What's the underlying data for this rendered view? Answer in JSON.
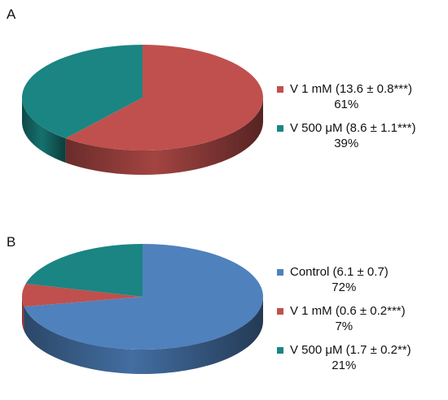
{
  "colors": {
    "control": "#4f81bd",
    "v1mm": "#c0504d",
    "v500": "#1a8583"
  },
  "chart_data": [
    {
      "type": "pie",
      "panel": "A",
      "slices": [
        {
          "label": "V 1 mM (13.6 ± 0.8***)",
          "value": 61,
          "pct_label": "61%",
          "color": "#c0504d"
        },
        {
          "label": "V 500 μM (8.6 ± 1.1***)",
          "value": 39,
          "pct_label": "39%",
          "color": "#1a8583"
        }
      ],
      "style": "3d",
      "legend_position": "right"
    },
    {
      "type": "pie",
      "panel": "B",
      "slices": [
        {
          "label": "Control (6.1 ± 0.7)",
          "value": 72,
          "pct_label": "72%",
          "color": "#4f81bd"
        },
        {
          "label": "V 1 mM (0.6 ± 0.2***)",
          "value": 7,
          "pct_label": "7%",
          "color": "#c0504d"
        },
        {
          "label": "V 500 μM (1.7 ± 0.2**)",
          "value": 21,
          "pct_label": "21%",
          "color": "#1a8583"
        }
      ],
      "style": "3d",
      "legend_position": "right"
    }
  ]
}
